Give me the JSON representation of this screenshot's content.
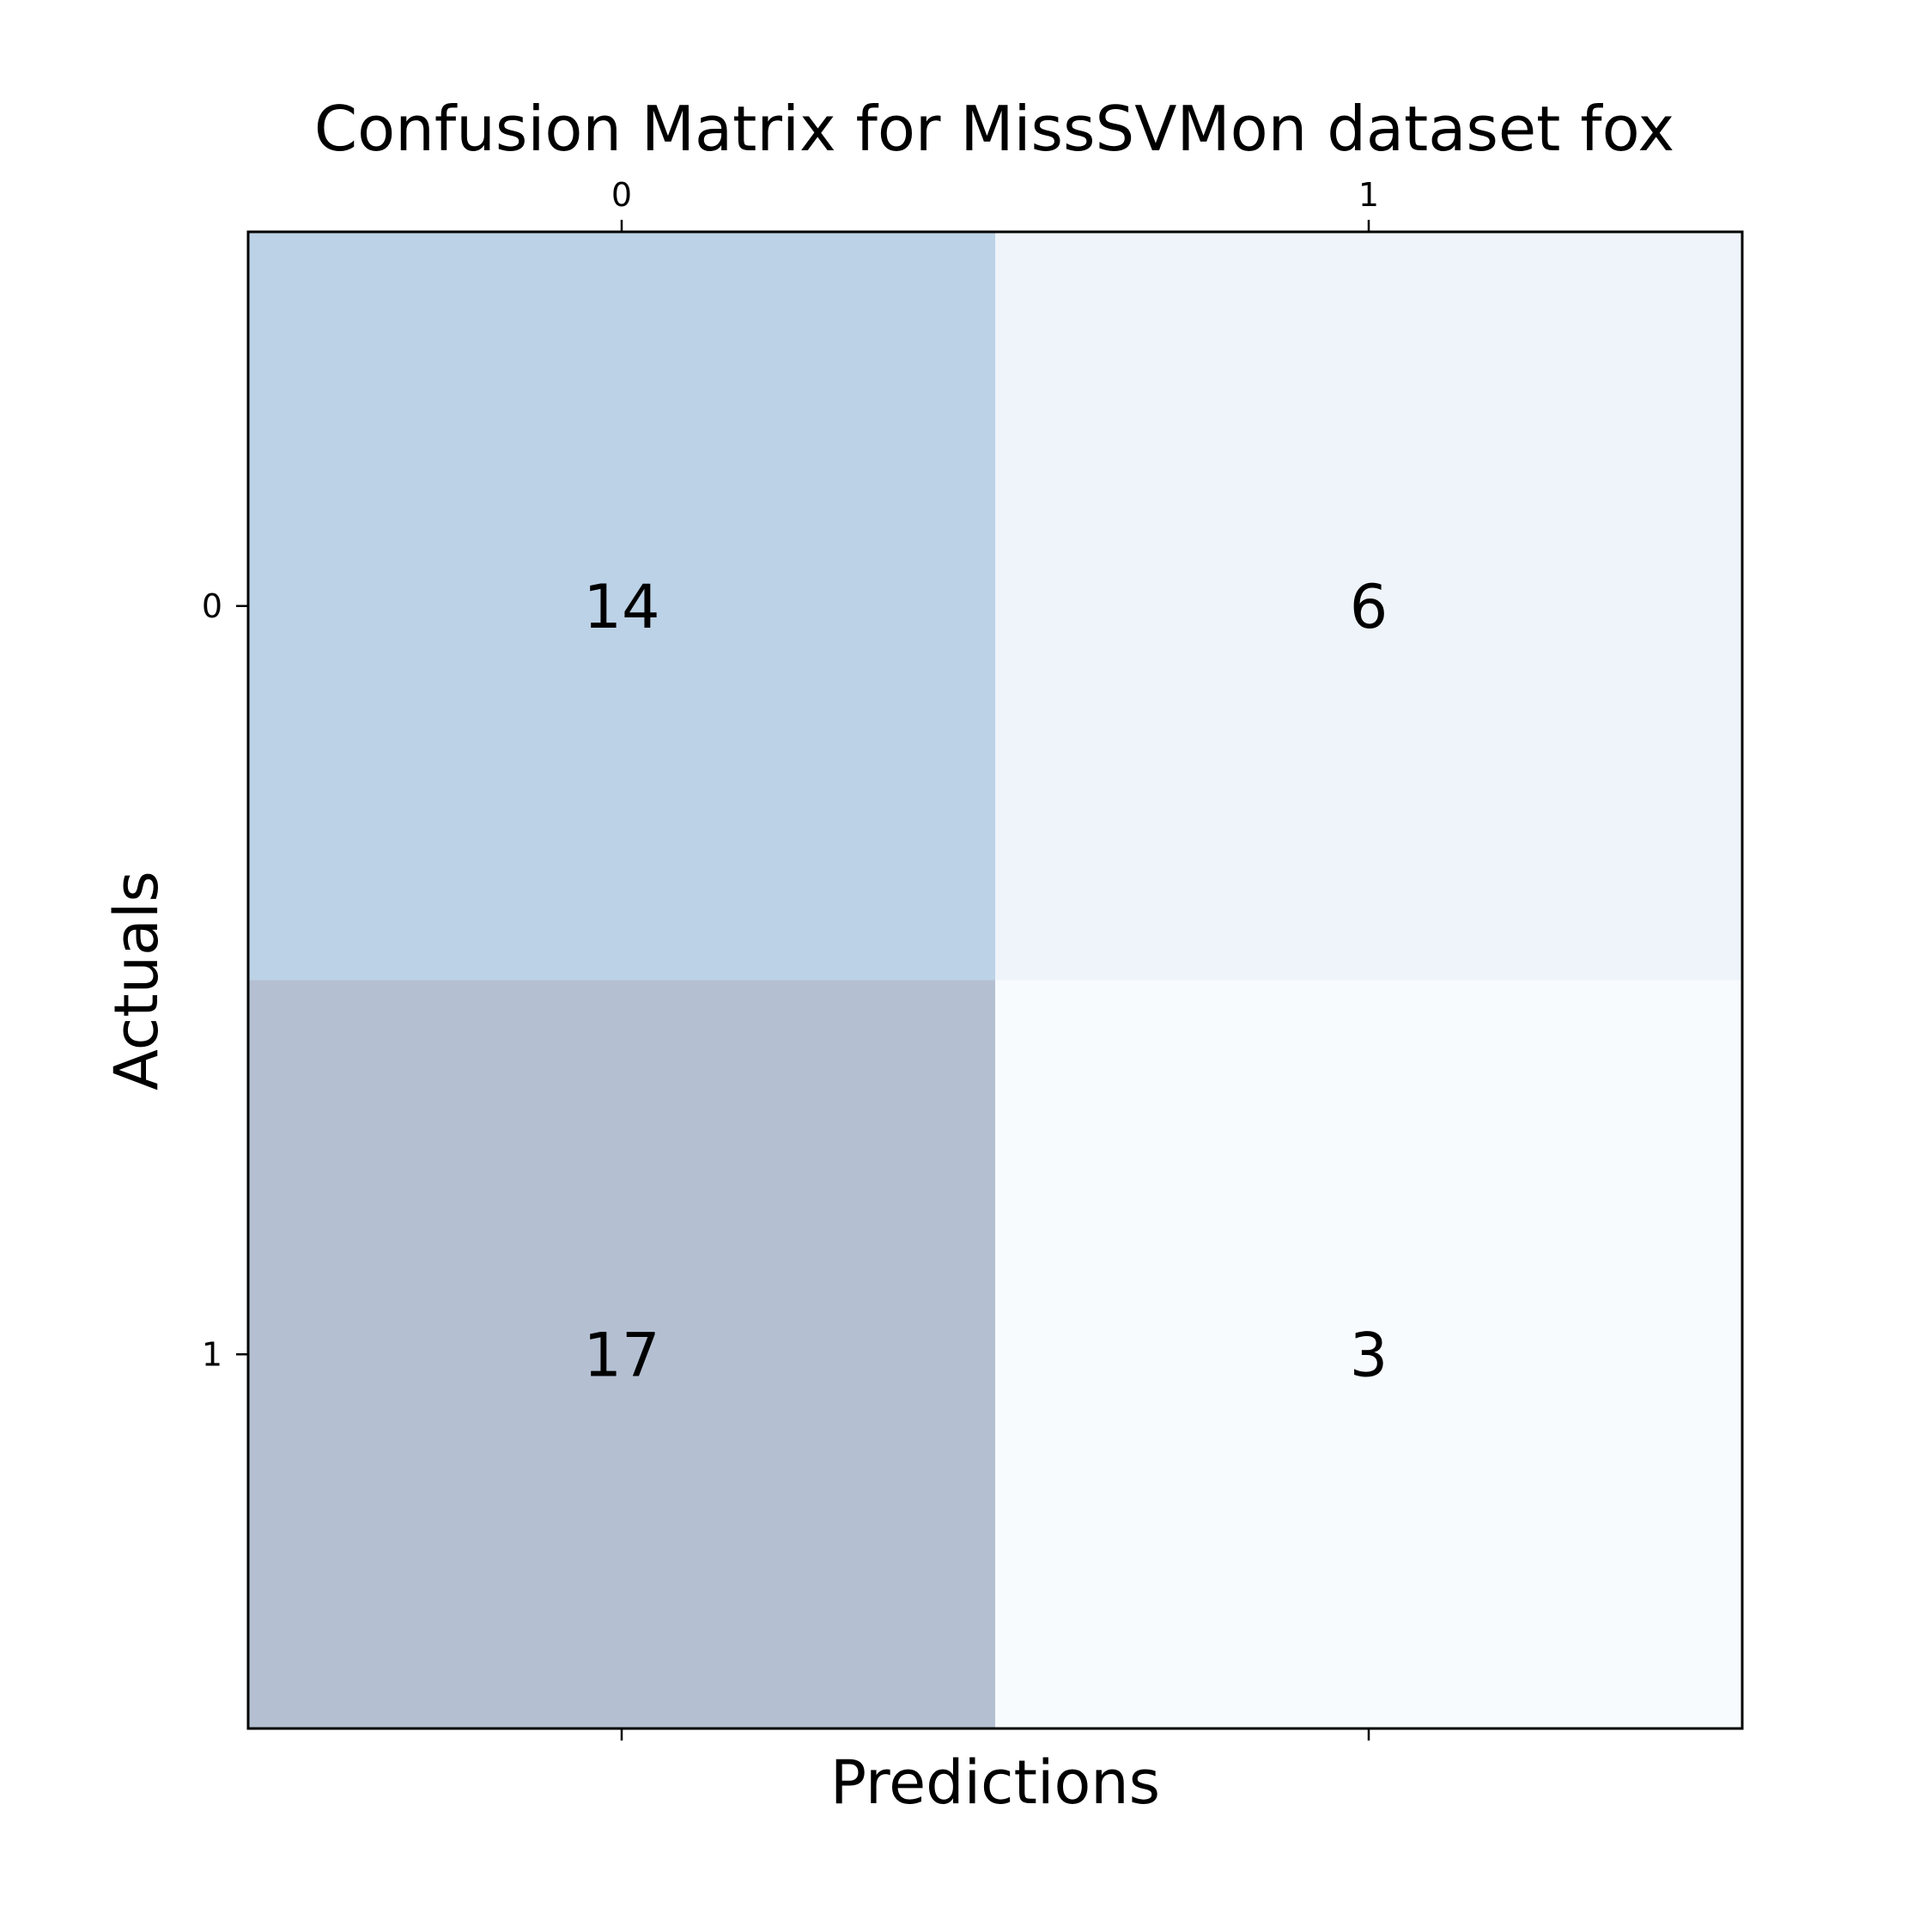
{
  "chart_data": {
    "type": "heatmap",
    "title": "Confusion Matrix for MissSVMon dataset fox",
    "xlabel": "Predictions",
    "ylabel": "Actuals",
    "x_categories": [
      "0",
      "1"
    ],
    "y_categories": [
      "0",
      "1"
    ],
    "matrix": [
      [
        14,
        6
      ],
      [
        17,
        3
      ]
    ],
    "cell_colors": [
      [
        "#bcd2e6",
        "#eef4f9"
      ],
      [
        "#b4c0d2",
        "#f8fbfe"
      ]
    ],
    "x_tick_position": "top",
    "grid": false
  }
}
